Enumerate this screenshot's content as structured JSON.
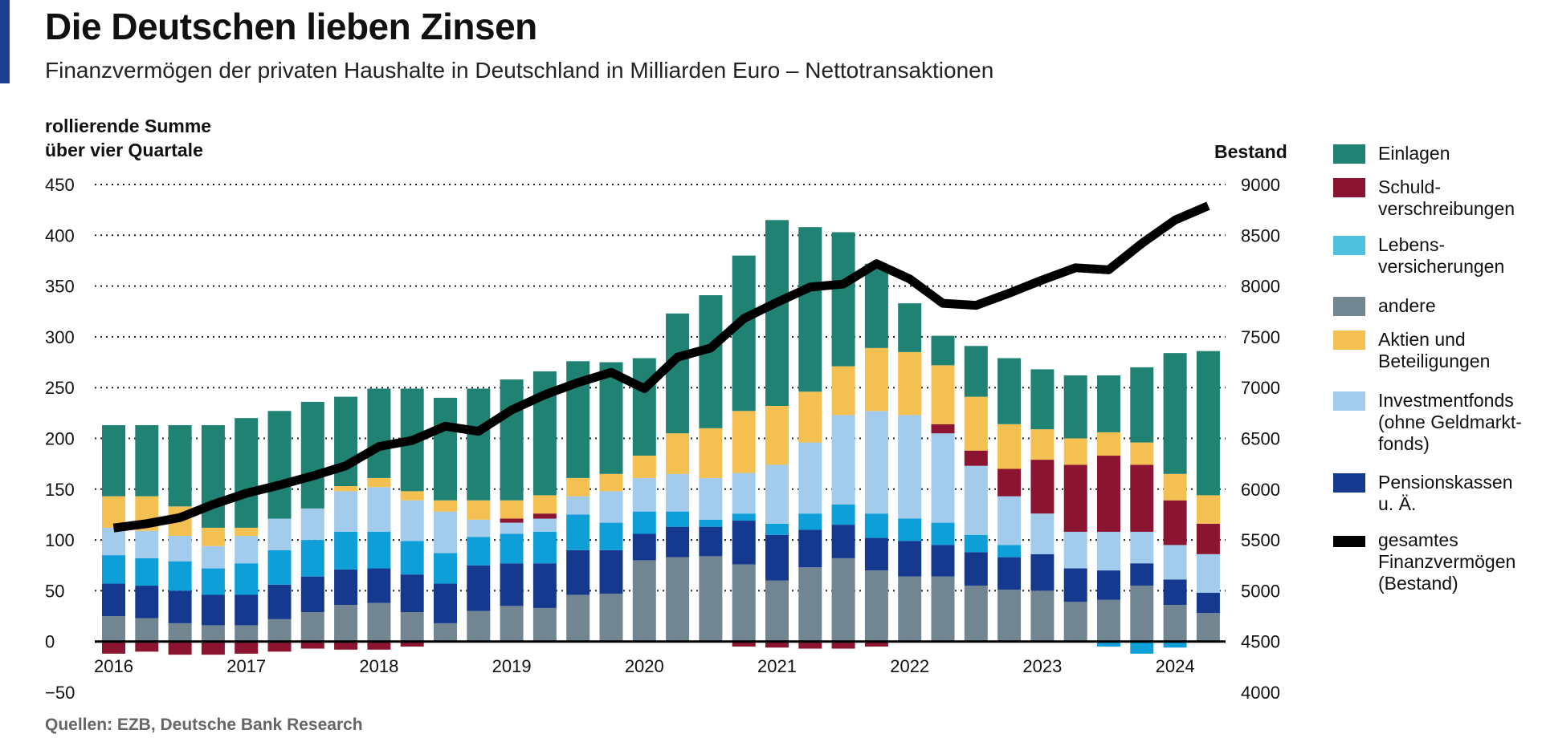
{
  "title": "Die Deutschen lieben Zinsen",
  "subtitle": "Finanzvermögen der privaten Haushalte in Deutschland in Milliarden Euro – Nettotransaktionen",
  "source": "Quellen: EZB, Deutsche Bank Research",
  "chart_data": {
    "type": "bar",
    "stacked": true,
    "title": "Die Deutschen lieben Zinsen",
    "subtitle": "Finanzvermögen der privaten Haushalte in Deutschland in Milliarden Euro – Nettotransaktionen",
    "ylabel": "rollierende Summe\nüber vier Quartale",
    "y2label": "Bestand",
    "ylim": [
      -50,
      450
    ],
    "y2lim": [
      4000,
      9000
    ],
    "yticks": [
      "450",
      "400",
      "350",
      "300",
      "250",
      "200",
      "150",
      "100",
      "50",
      "0",
      "−50"
    ],
    "y2ticks": [
      "9000",
      "8500",
      "8000",
      "7500",
      "7000",
      "6500",
      "6000",
      "5500",
      "5000",
      "4500",
      "4000"
    ],
    "grid": true,
    "legend_position": "right",
    "x": [
      "2016 Q1",
      "2016 Q2",
      "2016 Q3",
      "2016 Q4",
      "2017 Q1",
      "2017 Q2",
      "2017 Q3",
      "2017 Q4",
      "2018 Q1",
      "2018 Q2",
      "2018 Q3",
      "2018 Q4",
      "2019 Q1",
      "2019 Q2",
      "2019 Q3",
      "2019 Q4",
      "2020 Q1",
      "2020 Q2",
      "2020 Q3",
      "2020 Q4",
      "2021 Q1",
      "2021 Q2",
      "2021 Q3",
      "2021 Q4",
      "2022 Q1",
      "2022 Q2",
      "2022 Q3",
      "2022 Q4",
      "2023 Q1",
      "2023 Q2",
      "2023 Q3",
      "2023 Q4",
      "2024 Q1",
      "2024 Q2"
    ],
    "xtick_labels": [
      "2016",
      "2017",
      "2018",
      "2019",
      "2020",
      "2021",
      "2022",
      "2023",
      "2024"
    ],
    "series": [
      {
        "name": "andere",
        "color": "#728691",
        "values": [
          25,
          23,
          18,
          16,
          16,
          22,
          29,
          36,
          38,
          29,
          18,
          30,
          35,
          33,
          46,
          47,
          80,
          83,
          84,
          76,
          60,
          73,
          82,
          70,
          64,
          64,
          55,
          51,
          50,
          39,
          41,
          55,
          36,
          28
        ]
      },
      {
        "name": "Pensionskassen u. Ä.",
        "color": "#14398f",
        "values": [
          32,
          32,
          32,
          30,
          30,
          34,
          35,
          35,
          34,
          37,
          39,
          45,
          42,
          44,
          44,
          43,
          26,
          30,
          29,
          43,
          45,
          37,
          33,
          32,
          35,
          31,
          33,
          32,
          36,
          33,
          29,
          22,
          25,
          20
        ]
      },
      {
        "name": "Lebens-versicherungen",
        "color": "#0e9fd9",
        "legend_color": "#4fc0de",
        "values": [
          28,
          27,
          29,
          26,
          31,
          34,
          36,
          37,
          36,
          33,
          30,
          28,
          29,
          31,
          35,
          27,
          22,
          15,
          7,
          7,
          11,
          16,
          20,
          24,
          22,
          22,
          17,
          12,
          0,
          0,
          -5,
          -12,
          -6,
          0
        ]
      },
      {
        "name": "Investmentfonds (ohne Geldmarkt-fonds)",
        "color": "#a3cbeb",
        "values": [
          27,
          27,
          25,
          22,
          27,
          31,
          31,
          40,
          44,
          40,
          41,
          17,
          11,
          13,
          18,
          31,
          33,
          37,
          41,
          40,
          58,
          70,
          88,
          101,
          102,
          88,
          68,
          48,
          40,
          36,
          38,
          31,
          34,
          38
        ]
      },
      {
        "name": "Schuld-verschreibungen",
        "color": "#8b1531",
        "values": [
          -12,
          -10,
          -13,
          -13,
          -12,
          -10,
          -7,
          -8,
          -8,
          -5,
          0,
          0,
          4,
          5,
          0,
          0,
          0,
          0,
          0,
          -5,
          -6,
          -7,
          -7,
          -5,
          0,
          9,
          15,
          27,
          53,
          66,
          75,
          66,
          44,
          30
        ]
      },
      {
        "name": "Aktien und Beteiligungen",
        "color": "#f5c052",
        "values": [
          31,
          34,
          29,
          18,
          8,
          0,
          0,
          5,
          9,
          9,
          11,
          19,
          18,
          18,
          18,
          17,
          22,
          40,
          49,
          61,
          58,
          50,
          48,
          62,
          62,
          58,
          53,
          44,
          30,
          26,
          23,
          22,
          26,
          28
        ]
      },
      {
        "name": "Einlagen",
        "color": "#1f8272",
        "values": [
          70,
          70,
          80,
          101,
          108,
          106,
          105,
          88,
          88,
          101,
          101,
          110,
          119,
          122,
          115,
          110,
          96,
          118,
          131,
          153,
          183,
          162,
          132,
          83,
          48,
          29,
          50,
          65,
          59,
          62,
          56,
          74,
          119,
          142
        ]
      }
    ],
    "line": {
      "name": "gesamtes Finanzvermögen (Bestand)",
      "color": "#000000",
      "axis": "right",
      "values": [
        5618,
        5660,
        5720,
        5850,
        5960,
        6040,
        6130,
        6230,
        6420,
        6480,
        6620,
        6570,
        6780,
        6930,
        7050,
        7150,
        6990,
        7300,
        7390,
        7680,
        7840,
        7990,
        8020,
        8220,
        8070,
        7830,
        7810,
        7930,
        8060,
        8180,
        8160,
        8420,
        8650,
        8790
      ]
    }
  },
  "legend": [
    {
      "label": "Einlagen",
      "color": "#1f8272"
    },
    {
      "label": "Schuld-\nverschreibungen",
      "color": "#8b1531"
    },
    {
      "label": "Lebens-\nversicherungen",
      "color": "#4fc0de"
    },
    {
      "label": "andere",
      "color": "#728691"
    },
    {
      "label": "Aktien und\nBeteiligungen",
      "color": "#f5c052"
    },
    {
      "label": "Investmentfonds\n(ohne Geldmarkt-\nfonds)",
      "color": "#a3cbeb"
    },
    {
      "label": "Pensionskassen\nu. Ä.",
      "color": "#14398f"
    },
    {
      "label": "gesamtes\nFinanzvermögen\n(Bestand)",
      "color": "#000000"
    }
  ]
}
